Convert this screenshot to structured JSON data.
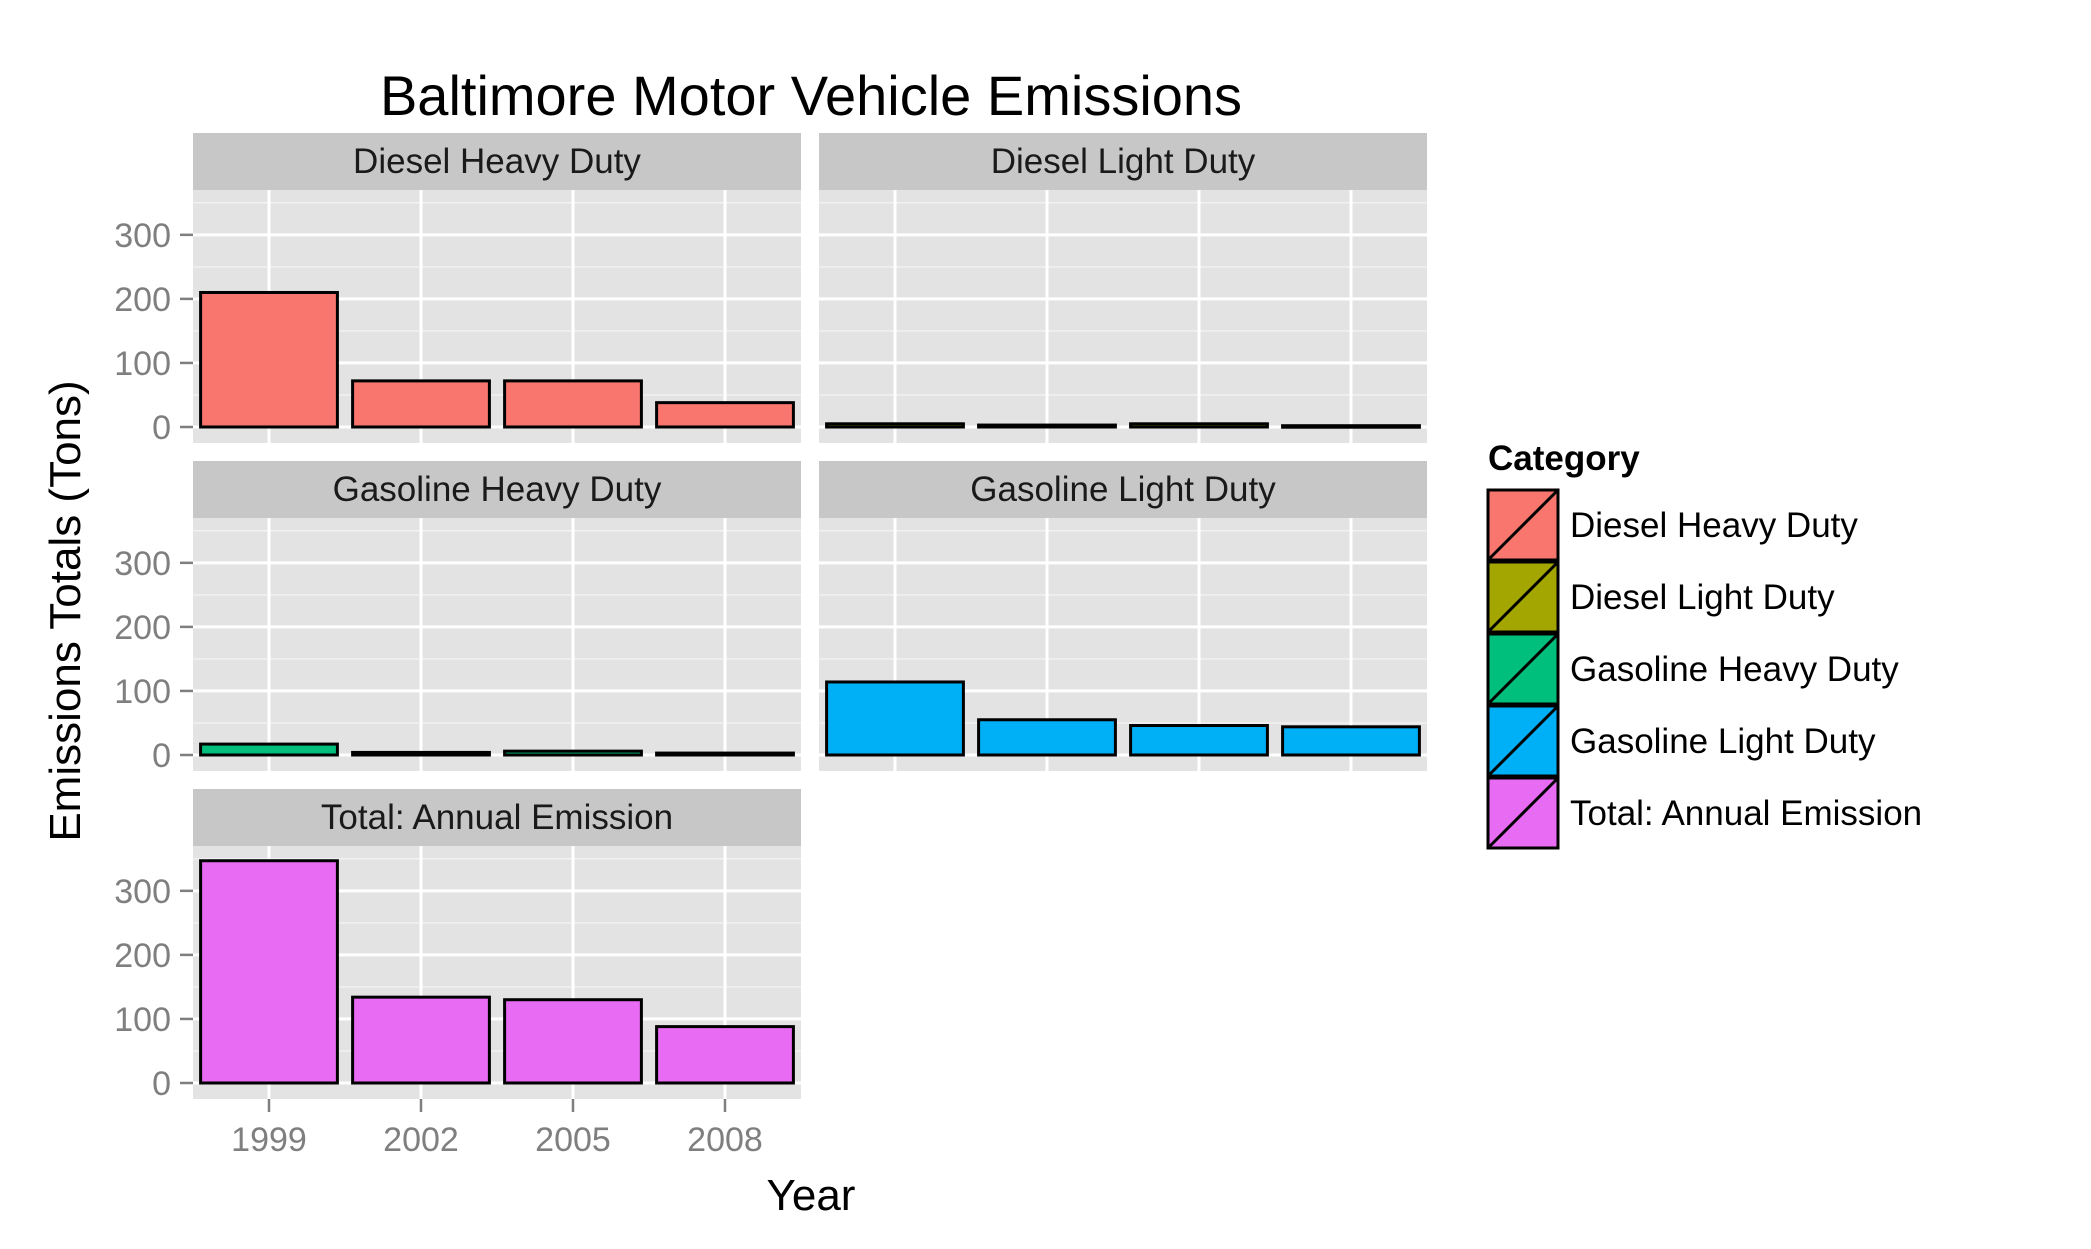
{
  "chart_data": {
    "type": "bar",
    "title": "Baltimore Motor Vehicle Emissions",
    "xlabel": "Year",
    "ylabel": "Emissions Totals (Tons)",
    "categories": [
      "1999",
      "2002",
      "2005",
      "2008"
    ],
    "ylim": [
      -25,
      370
    ],
    "yticks": [
      0,
      100,
      200,
      300
    ],
    "ytick_labels": [
      "0",
      "100",
      "200",
      "300"
    ],
    "grid": true,
    "legend": {
      "title": "Category",
      "position": "right"
    },
    "series": [
      {
        "name": "Diesel Heavy Duty",
        "color": "#F8766D",
        "values": [
          210,
          72,
          72,
          38
        ]
      },
      {
        "name": "Diesel Light Duty",
        "color": "#A3A500",
        "values": [
          5,
          3,
          5,
          2
        ]
      },
      {
        "name": "Gasoline Heavy Duty",
        "color": "#00BF7D",
        "values": [
          17,
          4,
          6,
          3
        ]
      },
      {
        "name": "Gasoline Light Duty",
        "color": "#00B0F6",
        "values": [
          114,
          55,
          46,
          44
        ]
      },
      {
        "name": "Total: Annual Emission",
        "color": "#E76BF3",
        "values": [
          347,
          134,
          130,
          88
        ]
      }
    ]
  }
}
